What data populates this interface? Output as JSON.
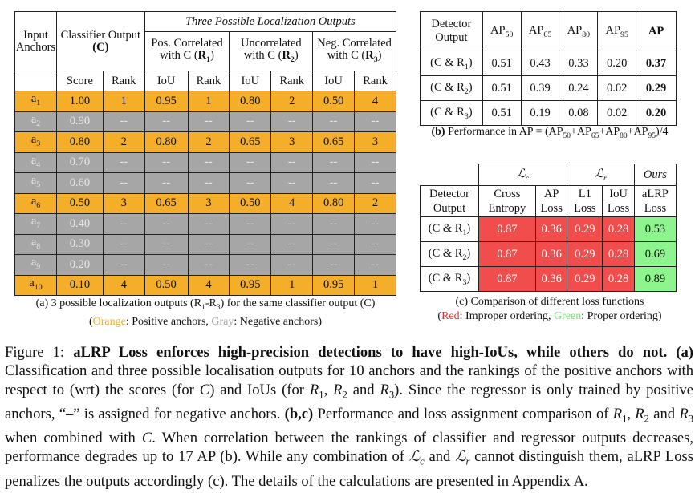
{
  "table_a": {
    "header": {
      "input_anchors": "Input Anchors",
      "classifier_output": "Classifier Output",
      "classifier_symbol": "(C)",
      "group_title": "Three Possible Localization Outputs",
      "pos_corr": "Pos. Correlated with C",
      "pos_sym": "(R1)",
      "uncorr": "Uncorrelated with C",
      "uncorr_sym": "(R2)",
      "neg_corr": "Neg. Correlated with C",
      "neg_sym": "(R3)",
      "score": "Score",
      "rank": "Rank",
      "iou": "IoU"
    },
    "rows": [
      {
        "anchor": "a1",
        "sub": "1",
        "type": "pos",
        "cells": [
          "1.00",
          "1",
          "0.95",
          "1",
          "0.80",
          "2",
          "0.50",
          "4"
        ]
      },
      {
        "anchor": "a2",
        "sub": "2",
        "type": "neg",
        "cells": [
          "0.90",
          "--",
          "--",
          "--",
          "--",
          "--",
          "--",
          "--"
        ]
      },
      {
        "anchor": "a3",
        "sub": "3",
        "type": "pos",
        "cells": [
          "0.80",
          "2",
          "0.80",
          "2",
          "0.65",
          "3",
          "0.65",
          "3"
        ]
      },
      {
        "anchor": "a4",
        "sub": "4",
        "type": "neg",
        "cells": [
          "0.70",
          "--",
          "--",
          "--",
          "--",
          "--",
          "--",
          "--"
        ]
      },
      {
        "anchor": "a5",
        "sub": "5",
        "type": "neg",
        "cells": [
          "0.60",
          "--",
          "--",
          "--",
          "--",
          "--",
          "--",
          "--"
        ]
      },
      {
        "anchor": "a6",
        "sub": "6",
        "type": "pos",
        "cells": [
          "0.50",
          "3",
          "0.65",
          "3",
          "0.50",
          "4",
          "0.80",
          "2"
        ]
      },
      {
        "anchor": "a7",
        "sub": "7",
        "type": "neg",
        "cells": [
          "0.40",
          "--",
          "--",
          "--",
          "--",
          "--",
          "--",
          "--"
        ]
      },
      {
        "anchor": "a8",
        "sub": "8",
        "type": "neg",
        "cells": [
          "0.30",
          "--",
          "--",
          "--",
          "--",
          "--",
          "--",
          "--"
        ]
      },
      {
        "anchor": "a9",
        "sub": "9",
        "type": "neg",
        "cells": [
          "0.20",
          "--",
          "--",
          "--",
          "--",
          "--",
          "--",
          "--"
        ]
      },
      {
        "anchor": "a10",
        "sub": "10",
        "type": "pos",
        "cells": [
          "0.10",
          "4",
          "0.50",
          "4",
          "0.95",
          "1",
          "0.95",
          "1"
        ]
      }
    ],
    "caption_line1": "(a) 3 possible localization outputs (R1-R3) for the same classifier output (C)",
    "caption_orange": "(Orange",
    "caption_mid": ": Positive anchors, ",
    "caption_gray": "Gray",
    "caption_end": ": Negative anchors)"
  },
  "table_b": {
    "header": [
      "Detector Output",
      "AP50",
      "AP65",
      "AP80",
      "AP95",
      "AP"
    ],
    "rows": [
      {
        "label": "(C & R1)",
        "values": [
          "0.51",
          "0.43",
          "0.33",
          "0.20",
          "0.37"
        ]
      },
      {
        "label": "(C & R2)",
        "values": [
          "0.51",
          "0.39",
          "0.24",
          "0.02",
          "0.29"
        ]
      },
      {
        "label": "(C & R3)",
        "values": [
          "0.51",
          "0.19",
          "0.08",
          "0.02",
          "0.20"
        ]
      }
    ],
    "caption": "(b) Performance in AP = (AP50+AP65+AP80+AP95)/4"
  },
  "table_c": {
    "group_lc": "Lc",
    "group_lr": "Lr",
    "group_ours": "Ours",
    "header": [
      "Detector Output",
      "Cross Entropy",
      "AP Loss",
      "L1 Loss",
      "IoU Loss",
      "aLRP Loss"
    ],
    "rows": [
      {
        "label": "(C & R1)",
        "values": [
          "0.87",
          "0.36",
          "0.29",
          "0.28",
          "0.53"
        ]
      },
      {
        "label": "(C & R2)",
        "values": [
          "0.87",
          "0.36",
          "0.29",
          "0.28",
          "0.69"
        ]
      },
      {
        "label": "(C & R3)",
        "values": [
          "0.87",
          "0.36",
          "0.29",
          "0.28",
          "0.89"
        ]
      }
    ],
    "caption_line1": "(c) Comparison of different loss functions",
    "caption_red": "(Red",
    "caption_mid": ": Improper ordering, ",
    "caption_green": "Green",
    "caption_end": ": Proper ordering)"
  },
  "figure_caption": {
    "label": "Figure 1: ",
    "title": "aLRP Loss enforces high-precision detections to have high-IoUs, while others do not.",
    "body": "(a) Classification and three possible localisation outputs for 10 anchors and the rankings of the positive anchors with respect to (wrt) the scores (for C) and IoUs (for R1, R2 and R3). Since the regressor is only trained by positive anchors, “–” is assigned for negative anchors. (b,c) Performance and loss assignment comparison of R1, R2 and R3 when combined with C. When correlation between the rankings of classifier and regressor outputs decreases, performance degrades up to 17 AP (b). While any combination of Lc and Lr cannot distinguish them, aLRP Loss penalizes the outputs accordingly (c). The details of the calculations are presented in Appendix A."
  },
  "colors": {
    "positive_anchor": "#f4ae2a",
    "negative_anchor": "#a6a6a6",
    "improper_ordering": "#f14d4d",
    "proper_ordering": "#8df58d"
  }
}
